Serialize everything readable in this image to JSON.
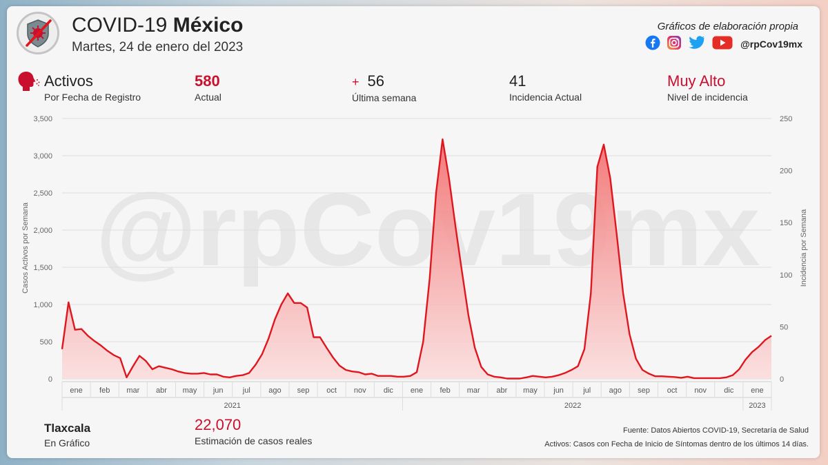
{
  "header": {
    "title_prefix": "COVID-19",
    "title_bold": "México",
    "date": "Martes, 24 de enero del 2023",
    "own_label": "Gráficos de elaboración propia",
    "handle": "@rpCov19mx",
    "social_icons": [
      "facebook-icon",
      "instagram-icon",
      "twitter-icon",
      "youtube-icon"
    ]
  },
  "kpis": {
    "activos_title": "Activos",
    "activos_sub": "Por Fecha de Registro",
    "actual_value": "580",
    "actual_label": "Actual",
    "week_sign": "+",
    "week_value": "56",
    "week_label": "Última semana",
    "incidencia_value": "41",
    "incidencia_label": "Incidencia Actual",
    "nivel_value": "Muy Alto",
    "nivel_label": "Nivel de incidencia"
  },
  "footer": {
    "state": "Tlaxcala",
    "state_label": "En Gráfico",
    "estimate_value": "22,070",
    "estimate_label": "Estimación de casos reales",
    "source_line1": "Fuente: Datos Abiertos COVID-19, Secretaría de Salud",
    "source_line2": "Activos: Casos con Fecha de Inicio de Síntomas dentro de los últimos 14 días."
  },
  "watermark": "@rpCov19mx",
  "colors": {
    "accent": "#c8102e",
    "line": "#e0161e",
    "fill": "#fbd0d0"
  },
  "chart_data": {
    "type": "area",
    "ylabel": "Casos Activos por Semana",
    "y2label": "Incidencia por Semana",
    "ylim": [
      0,
      3500
    ],
    "y2lim": [
      0,
      250
    ],
    "yticks": [
      "0",
      "500",
      "1,000",
      "1,500",
      "2,000",
      "2,500",
      "3,000",
      "3,500"
    ],
    "y2ticks": [
      "0",
      "50",
      "100",
      "150",
      "200",
      "250"
    ],
    "months": [
      "ene",
      "feb",
      "mar",
      "abr",
      "may",
      "jun",
      "jul",
      "ago",
      "sep",
      "oct",
      "nov",
      "dic",
      "ene",
      "feb",
      "mar",
      "abr",
      "may",
      "jun",
      "jul",
      "ago",
      "sep",
      "oct",
      "nov",
      "dic",
      "ene"
    ],
    "years": [
      "2021",
      "2022",
      "2023"
    ],
    "grid": true,
    "series": [
      {
        "values": [
          400,
          1030,
          660,
          670,
          580,
          510,
          450,
          380,
          320,
          280,
          20,
          170,
          310,
          240,
          130,
          170,
          150,
          130,
          100,
          80,
          70,
          70,
          80,
          60,
          60,
          30,
          20,
          40,
          50,
          80,
          190,
          330,
          540,
          800,
          1000,
          1150,
          1020,
          1020,
          960,
          560,
          560,
          420,
          290,
          180,
          120,
          100,
          90,
          60,
          70,
          40,
          40,
          40,
          30,
          30,
          40,
          90,
          500,
          1350,
          2500,
          3220,
          2700,
          2050,
          1450,
          860,
          420,
          160,
          60,
          30,
          20,
          5,
          5,
          5,
          20,
          40,
          30,
          20,
          30,
          50,
          80,
          120,
          170,
          400,
          1150,
          2850,
          3150,
          2700,
          1950,
          1150,
          600,
          270,
          120,
          70,
          35,
          35,
          30,
          25,
          15,
          30,
          10,
          10,
          10,
          10,
          10,
          20,
          50,
          130,
          260,
          360,
          430,
          520,
          580
        ]
      }
    ]
  }
}
